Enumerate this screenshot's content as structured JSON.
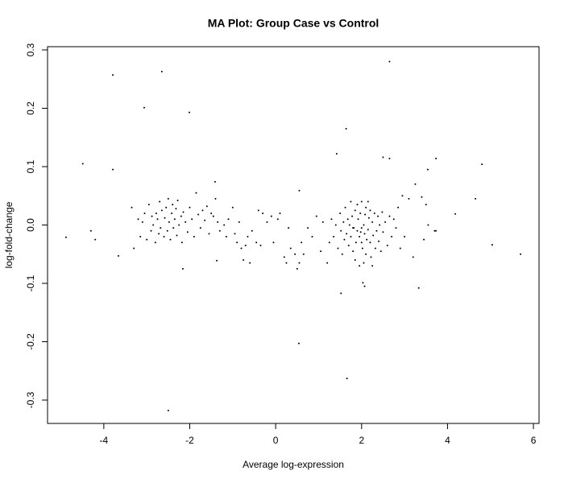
{
  "chart_data": {
    "type": "scatter",
    "title": "MA Plot: Group Case vs Control",
    "x_label": "Average log-expression",
    "y_label": "log-fold-change",
    "xlim": [
      -5.31,
      6.13
    ],
    "ylim": [
      -0.34,
      0.3055
    ],
    "xticks": [
      -4,
      -2,
      0,
      2,
      4,
      6
    ],
    "yticks": [
      -0.3,
      -0.2,
      -0.1,
      {
        "value": 0,
        "label": "0.0"
      },
      0.1,
      0.2,
      0.3
    ],
    "color": "#000000",
    "x": [
      -3.79,
      -2.65,
      -3.06,
      -2.01,
      2.65,
      -4.49,
      -3.79,
      -4.88,
      -4.3,
      -4.2,
      -3.66,
      -2.5,
      0.54,
      1.64,
      1.42,
      1.66,
      2.5,
      2.65,
      3.73,
      3.54,
      4.8,
      4.65,
      4.18,
      5.04,
      5.7,
      3.33,
      1.52,
      2.07,
      2.03,
      0.55,
      -1.41,
      -2.16,
      -1.37,
      3.73,
      -3.35,
      -3.3,
      -3.2,
      -3.15,
      -3.1,
      -3.05,
      -3.0,
      -2.95,
      -2.9,
      -2.88,
      -2.85,
      -2.8,
      -2.78,
      -2.75,
      -2.72,
      -2.7,
      -2.68,
      -2.65,
      -2.6,
      -2.58,
      -2.55,
      -2.52,
      -2.5,
      -2.48,
      -2.45,
      -2.42,
      -2.4,
      -2.38,
      -2.35,
      -2.32,
      -2.3,
      -2.28,
      -2.25,
      -2.2,
      -2.18,
      -2.15,
      -2.1,
      -2.05,
      -2.0,
      -1.95,
      -1.9,
      -1.85,
      -1.8,
      -1.75,
      -1.7,
      -1.65,
      -1.6,
      -1.55,
      -1.5,
      -1.45,
      -1.4,
      -1.35,
      -1.3,
      -1.2,
      -1.15,
      -1.1,
      -1.0,
      -0.95,
      -0.9,
      -0.85,
      -0.8,
      -0.75,
      -0.7,
      -0.65,
      -0.6,
      -0.55,
      -0.45,
      -0.4,
      -0.35,
      -0.3,
      -0.2,
      -0.1,
      -0.05,
      0.05,
      0.1,
      0.2,
      0.25,
      0.3,
      0.35,
      0.45,
      0.5,
      0.55,
      0.6,
      0.65,
      0.75,
      0.85,
      0.95,
      1.05,
      1.1,
      1.2,
      1.25,
      1.3,
      1.35,
      1.4,
      1.45,
      1.5,
      1.52,
      1.55,
      1.58,
      1.6,
      1.62,
      1.65,
      1.68,
      1.7,
      1.72,
      1.75,
      1.78,
      1.8,
      1.82,
      1.85,
      1.87,
      1.9,
      1.92,
      1.95,
      1.97,
      2.0,
      2.02,
      2.05,
      2.07,
      2.1,
      2.12,
      2.15,
      2.17,
      2.2,
      2.22,
      2.25,
      2.27,
      2.3,
      2.32,
      2.35,
      2.38,
      2.4,
      2.42,
      2.45,
      2.48,
      2.5,
      2.55,
      2.6,
      2.65,
      2.7,
      2.75,
      2.8,
      2.85,
      2.9,
      2.95,
      3.0,
      3.1,
      3.2,
      3.25,
      3.4,
      3.45,
      3.5,
      3.55,
      3.7,
      1.85,
      1.9,
      1.95,
      2.0,
      2.05,
      2.1,
      2.15,
      2.2,
      2.25,
      1.75,
      1.8,
      2.0,
      2.08,
      1.98
    ],
    "y": [
      0.257,
      0.263,
      0.201,
      0.193,
      0.28,
      0.105,
      0.095,
      -0.021,
      -0.01,
      -0.025,
      -0.053,
      -0.318,
      -0.203,
      0.165,
      0.122,
      -0.263,
      0.116,
      0.114,
      0.114,
      0.095,
      0.104,
      0.045,
      0.019,
      -0.034,
      -0.05,
      -0.108,
      -0.117,
      -0.105,
      -0.099,
      0.059,
      0.074,
      -0.075,
      -0.061,
      -0.01,
      0.03,
      -0.04,
      0.01,
      -0.02,
      0.005,
      0.02,
      -0.025,
      0.035,
      -0.01,
      0.015,
      0.0,
      -0.03,
      0.02,
      0.01,
      -0.015,
      0.04,
      -0.005,
      0.025,
      -0.02,
      0.012,
      0.03,
      -0.01,
      0.045,
      0.005,
      -0.025,
      0.02,
      0.035,
      -0.005,
      0.01,
      0.028,
      -0.018,
      0.042,
      0.0,
      0.015,
      -0.03,
      0.022,
      0.005,
      -0.012,
      0.03,
      0.01,
      -0.02,
      0.055,
      0.018,
      -0.005,
      0.025,
      0.008,
      0.032,
      -0.015,
      0.02,
      0.015,
      0.045,
      0.005,
      -0.01,
      0.0,
      -0.02,
      0.01,
      0.03,
      -0.015,
      -0.03,
      0.005,
      -0.04,
      -0.06,
      -0.035,
      -0.02,
      -0.065,
      -0.01,
      -0.03,
      0.025,
      -0.035,
      0.02,
      0.005,
      0.015,
      -0.03,
      0.01,
      0.02,
      -0.055,
      -0.065,
      -0.005,
      -0.04,
      -0.05,
      -0.075,
      -0.065,
      -0.03,
      -0.05,
      -0.005,
      -0.02,
      0.015,
      -0.045,
      0.005,
      -0.065,
      -0.03,
      0.01,
      -0.02,
      0.0,
      -0.04,
      0.02,
      -0.01,
      -0.05,
      0.005,
      -0.025,
      0.03,
      -0.015,
      0.01,
      -0.035,
      0.0,
      -0.02,
      0.015,
      -0.045,
      -0.005,
      0.025,
      -0.03,
      -0.01,
      0.01,
      -0.02,
      0.02,
      -0.005,
      -0.04,
      0.0,
      -0.015,
      0.03,
      -0.025,
      -0.008,
      0.012,
      -0.03,
      -0.055,
      0.005,
      -0.018,
      0.02,
      -0.04,
      -0.01,
      0.015,
      -0.028,
      0.0,
      -0.045,
      0.022,
      -0.012,
      0.005,
      -0.035,
      0.015,
      -0.02,
      0.01,
      -0.005,
      0.03,
      -0.04,
      0.05,
      -0.02,
      0.045,
      -0.055,
      0.07,
      0.048,
      -0.025,
      0.035,
      0.0,
      -0.01,
      -0.06,
      0.035,
      -0.07,
      0.04,
      -0.065,
      -0.05,
      0.04,
      0.025,
      -0.07,
      0.04,
      -0.005,
      -0.03,
      0.018,
      -0.012
    ]
  }
}
